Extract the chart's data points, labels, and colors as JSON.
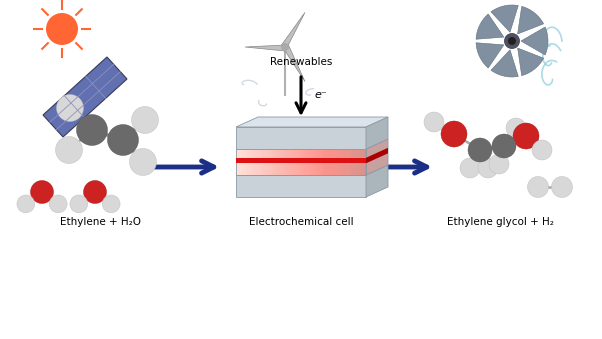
{
  "background_color": "#ffffff",
  "label_left": "Ethylene + H₂O",
  "label_center": "Electrochemical cell",
  "label_right": "Ethylene glycol + H₂",
  "label_renewables": "Renewables",
  "label_electrons": "e⁻",
  "arrow_color": "#1c2f87",
  "figsize": [
    6.02,
    3.39
  ],
  "dpi": 100,
  "xlim": [
    0,
    6.02
  ],
  "ylim": [
    0,
    3.39
  ]
}
